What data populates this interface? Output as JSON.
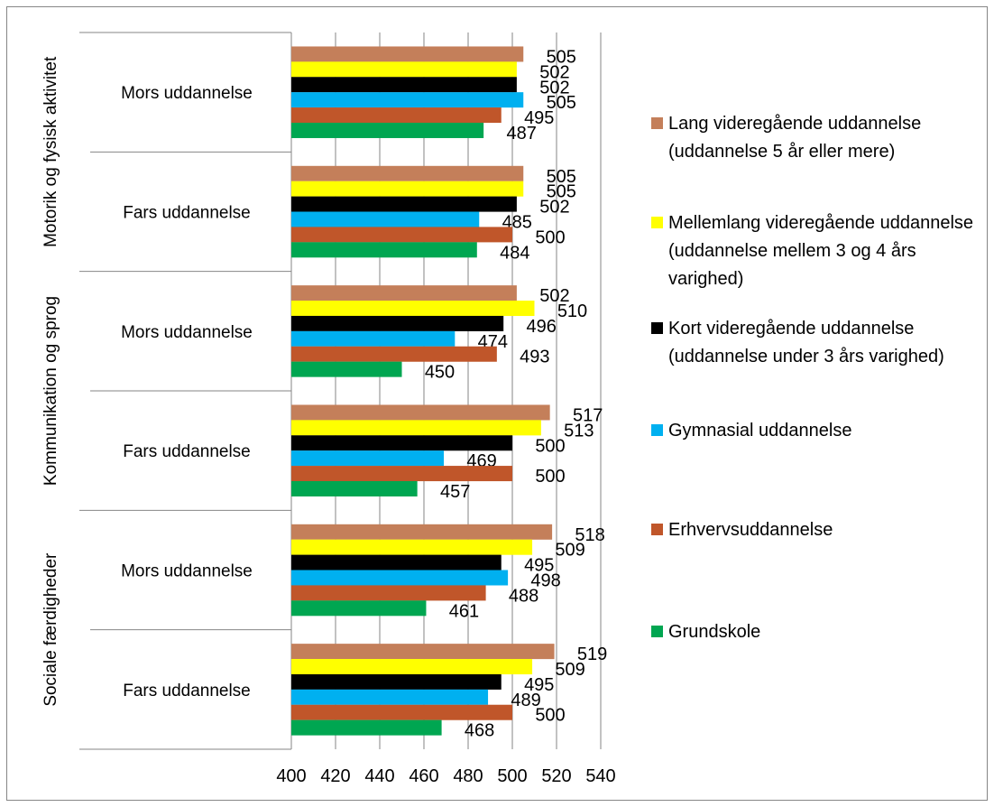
{
  "chart_data": {
    "type": "bar",
    "orientation": "horizontal",
    "groups": [
      {
        "label": "Motorik og fysisk aktivitet",
        "subgroups": [
          {
            "label": "Mors uddannelse",
            "values": [
              505,
              502,
              502,
              505,
              495,
              487
            ]
          },
          {
            "label": "Fars uddannelse",
            "values": [
              505,
              505,
              502,
              485,
              500,
              484
            ]
          }
        ]
      },
      {
        "label": "Kommunikation og sprog",
        "subgroups": [
          {
            "label": "Mors uddannelse",
            "values": [
              502,
              510,
              496,
              474,
              493,
              450
            ]
          },
          {
            "label": "Fars uddannelse",
            "values": [
              517,
              513,
              500,
              469,
              500,
              457
            ]
          }
        ]
      },
      {
        "label": "Sociale færdigheder",
        "subgroups": [
          {
            "label": "Mors uddannelse",
            "values": [
              518,
              509,
              495,
              498,
              488,
              461
            ]
          },
          {
            "label": "Fars uddannelse",
            "values": [
              519,
              509,
              495,
              489,
              500,
              468
            ]
          }
        ]
      }
    ],
    "series": [
      {
        "name": "Lang videregående uddannelse (uddannelse 5 år eller mere)",
        "color": "#C47F5A"
      },
      {
        "name": "Mellemlang videregående uddannelse (uddannelse mellem 3 og 4 års varighed)",
        "color": "#FFFF00"
      },
      {
        "name": "Kort videregående uddannelse (uddannelse under 3 års varighed)",
        "color": "#000000"
      },
      {
        "name": "Gymnasial uddannelse",
        "color": "#00B0F0"
      },
      {
        "name": "Erhvervsuddannelse",
        "color": "#C0562A"
      },
      {
        "name": "Grundskole",
        "color": "#00A651"
      }
    ],
    "xlim": [
      400,
      540
    ],
    "xticks": [
      400,
      420,
      440,
      460,
      480,
      500,
      520,
      540
    ],
    "grid": true,
    "legend_position": "right"
  }
}
